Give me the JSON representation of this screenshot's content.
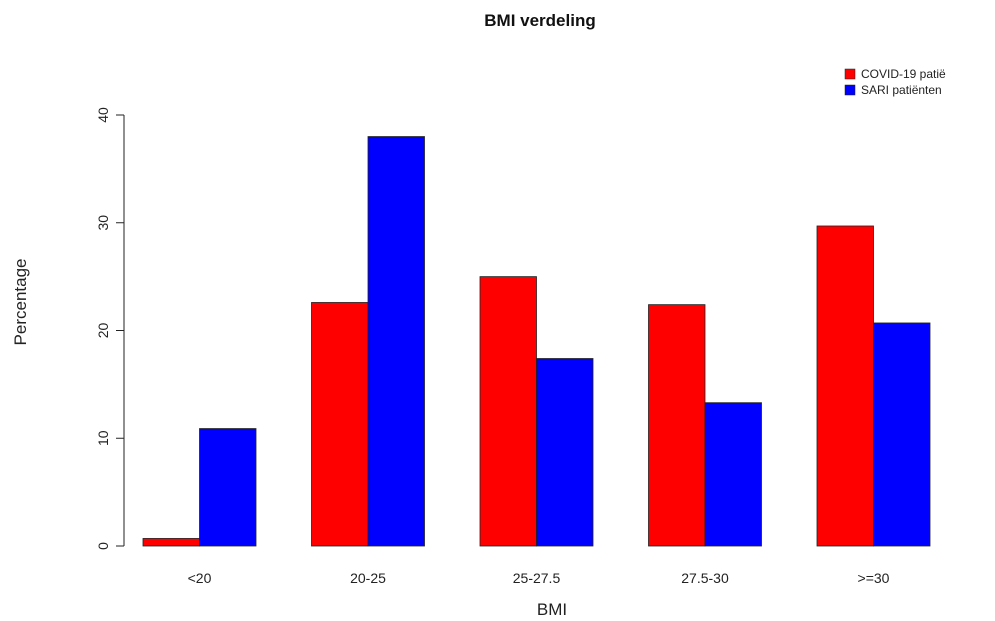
{
  "chart_data": {
    "type": "bar",
    "title": "BMI verdeling",
    "xlabel": "BMI",
    "ylabel": "Percentage",
    "categories": [
      "<20",
      "20-25",
      "25-27.5",
      "27.5-30",
      ">=30"
    ],
    "series": [
      {
        "name": "COVID-19 patië",
        "color": "#ff0000",
        "values": [
          0.7,
          22.6,
          25.0,
          22.4,
          29.7
        ]
      },
      {
        "name": "SARI patiënten",
        "color": "#0000ff",
        "values": [
          10.9,
          38.0,
          17.4,
          13.3,
          20.7
        ]
      }
    ],
    "ylim": [
      0,
      40
    ],
    "yticks": [
      "0",
      "10",
      "20",
      "30",
      "40"
    ],
    "grid": false,
    "legend_position": "top-right"
  }
}
